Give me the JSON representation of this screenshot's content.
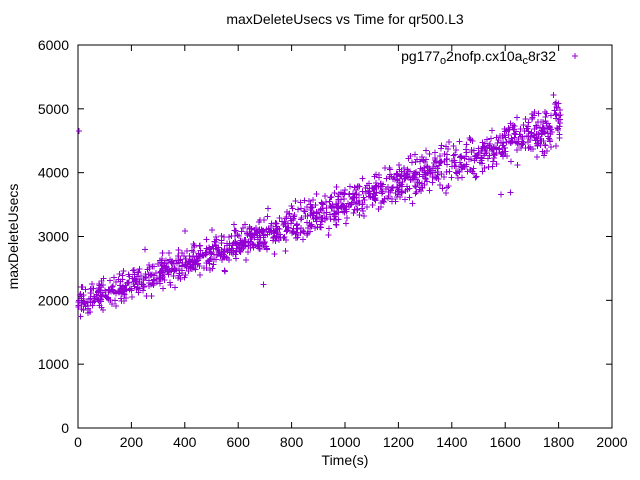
{
  "chart_data": {
    "type": "scatter",
    "title": "maxDeleteUsecs vs Time for qr500.L3",
    "xlabel": "Time(s)",
    "ylabel": "maxDeleteUsecs",
    "xlim": [
      0,
      2000
    ],
    "ylim": [
      0,
      6000
    ],
    "x_ticks": [
      0,
      200,
      400,
      600,
      800,
      1000,
      1200,
      1400,
      1600,
      1800,
      2000
    ],
    "y_ticks": [
      0,
      1000,
      2000,
      3000,
      4000,
      5000,
      6000
    ],
    "grid": false,
    "legend_position": "top-right-inside",
    "series": [
      {
        "name": "pg177_o2nofp.cx10a_c8r32",
        "label_segments": [
          {
            "text": "pg177"
          },
          {
            "text": "o",
            "sub": true
          },
          {
            "text": "2nofp.cx10a"
          },
          {
            "text": "c",
            "sub": true
          },
          {
            "text": "8r32"
          }
        ],
        "marker": "plus",
        "color": "#9400d3",
        "trend": {
          "intercept": 1950,
          "slope": 1.556
        },
        "noise_sd": 115,
        "spread_growth": 0.45,
        "x_range": [
          0,
          1810
        ],
        "count": 1300,
        "seed": 42,
        "outliers": [
          [
            3,
            4650
          ],
          [
            250,
            2800
          ],
          [
            400,
            3090
          ],
          [
            695,
            2250
          ],
          [
            1585,
            3655
          ],
          [
            1620,
            3690
          ],
          [
            1790,
            5100
          ],
          [
            1740,
            4330
          ]
        ]
      }
    ]
  }
}
